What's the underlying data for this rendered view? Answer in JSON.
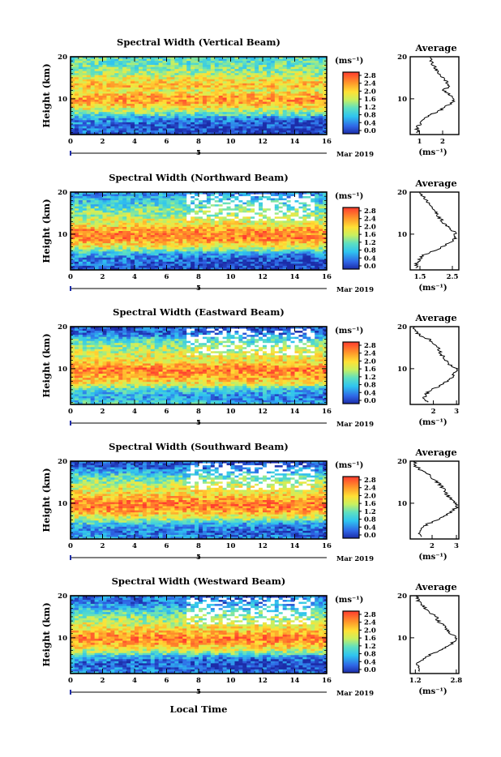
{
  "common": {
    "ylabel": "Height (km)",
    "xlabel": "Local Time",
    "colorbar_unit": "(ms⁻¹)",
    "colorbar_ticks": [
      "2.8",
      "2.4",
      "2.0",
      "1.6",
      "1.2",
      "0.8",
      "0.4",
      "0.0"
    ],
    "profile_title": "Average",
    "profile_unit": "(ms⁻¹)",
    "date_label": "Mar 2019",
    "day_marker": "5",
    "y_ticks": [
      "20",
      "10"
    ],
    "colors": {
      "high": "#ff3b2f",
      "mid": "#ffe135",
      "low": "#31c4e6",
      "min": "#1c2ca8",
      "missing": "#ffffff"
    }
  },
  "chart_data": [
    {
      "type": "heatmap",
      "title": "Spectral Width (Vertical Beam)",
      "xlabel": "Local Time",
      "ylabel": "Height (km)",
      "x_ticks": [
        "0",
        "2",
        "4",
        "6",
        "8",
        "10",
        "12",
        "14",
        "16"
      ],
      "xlim": [
        0,
        16
      ],
      "ylim": [
        1.5,
        20
      ],
      "zlim": [
        0,
        3
      ],
      "profile": {
        "title": "Average",
        "xlabel": "(ms⁻¹)",
        "x_ticks": [
          "1",
          "2"
        ],
        "xlim": [
          0.6,
          2.7
        ],
        "heights": [
          2,
          3,
          4,
          5,
          6,
          7,
          8,
          9,
          10,
          11,
          12,
          13,
          14,
          15,
          16,
          17,
          18,
          19,
          20
        ],
        "values": [
          0.9,
          0.9,
          1.0,
          1.1,
          1.4,
          1.8,
          2.1,
          2.4,
          2.5,
          2.3,
          2.0,
          2.3,
          2.2,
          2.0,
          1.8,
          1.7,
          1.6,
          1.5,
          1.5
        ]
      }
    },
    {
      "type": "heatmap",
      "title": "Spectral Width (Northward Beam)",
      "xlabel": "Local Time",
      "ylabel": "Height (km)",
      "x_ticks": [
        "0",
        "2",
        "4",
        "6",
        "8",
        "10",
        "12",
        "14",
        "16"
      ],
      "xlim": [
        0,
        16
      ],
      "ylim": [
        1.5,
        20
      ],
      "zlim": [
        0,
        3
      ],
      "profile": {
        "title": "Average",
        "xlabel": "(ms⁻¹)",
        "x_ticks": [
          "1.5",
          "2.5"
        ],
        "xlim": [
          1.2,
          2.7
        ],
        "heights": [
          2,
          3,
          4,
          5,
          6,
          7,
          8,
          9,
          10,
          11,
          12,
          13,
          14,
          15,
          16,
          17,
          18,
          19,
          20
        ],
        "values": [
          1.4,
          1.4,
          1.5,
          1.6,
          1.9,
          2.2,
          2.4,
          2.6,
          2.6,
          2.5,
          2.3,
          2.2,
          2.1,
          2.0,
          1.9,
          1.8,
          1.7,
          1.6,
          1.5
        ]
      }
    },
    {
      "type": "heatmap",
      "title": "Spectral Width (Eastward Beam)",
      "xlabel": "Local Time",
      "ylabel": "Height (km)",
      "x_ticks": [
        "0",
        "2",
        "4",
        "6",
        "8",
        "10",
        "12",
        "14",
        "16"
      ],
      "xlim": [
        0,
        16
      ],
      "ylim": [
        1.5,
        20
      ],
      "zlim": [
        0,
        3
      ],
      "profile": {
        "title": "Average",
        "xlabel": "(ms⁻¹)",
        "x_ticks": [
          "2",
          "3"
        ],
        "xlim": [
          1.0,
          3.1
        ],
        "heights": [
          2,
          3,
          4,
          5,
          6,
          7,
          8,
          9,
          10,
          11,
          12,
          13,
          14,
          15,
          16,
          17,
          18,
          19,
          20
        ],
        "values": [
          1.8,
          1.6,
          1.7,
          1.9,
          2.3,
          2.6,
          2.8,
          2.9,
          3.0,
          2.7,
          2.5,
          2.4,
          2.3,
          2.2,
          2.0,
          1.8,
          1.4,
          1.2,
          1.2
        ]
      }
    },
    {
      "type": "heatmap",
      "title": "Spectral Width (Southward Beam)",
      "xlabel": "Local Time",
      "ylabel": "Height (km)",
      "x_ticks": [
        "0",
        "2",
        "4",
        "6",
        "8",
        "10",
        "12",
        "14",
        "16"
      ],
      "xlim": [
        0,
        16
      ],
      "ylim": [
        1.5,
        20
      ],
      "zlim": [
        0,
        3
      ],
      "profile": {
        "title": "Average",
        "xlabel": "(ms⁻¹)",
        "x_ticks": [
          "2",
          "3"
        ],
        "xlim": [
          1.1,
          3.1
        ],
        "heights": [
          2,
          3,
          4,
          5,
          6,
          7,
          8,
          9,
          10,
          11,
          12,
          13,
          14,
          15,
          16,
          17,
          18,
          19,
          20
        ],
        "values": [
          1.6,
          1.5,
          1.6,
          1.8,
          2.2,
          2.5,
          2.8,
          3.0,
          3.0,
          2.8,
          2.6,
          2.5,
          2.4,
          2.2,
          2.0,
          1.8,
          1.5,
          1.3,
          1.3
        ]
      }
    },
    {
      "type": "heatmap",
      "title": "Spectral Width (Westward Beam)",
      "xlabel": "Local Time",
      "ylabel": "Height (km)",
      "x_ticks": [
        "0",
        "2",
        "4",
        "6",
        "8",
        "10",
        "12",
        "14",
        "16"
      ],
      "xlim": [
        0,
        16
      ],
      "ylim": [
        1.5,
        20
      ],
      "zlim": [
        0,
        3
      ],
      "profile": {
        "title": "Average",
        "xlabel": "(ms⁻¹)",
        "x_ticks": [
          "1.2",
          "2.8"
        ],
        "xlim": [
          1.0,
          2.9
        ],
        "heights": [
          2,
          3,
          4,
          5,
          6,
          7,
          8,
          9,
          10,
          11,
          12,
          13,
          14,
          15,
          16,
          17,
          18,
          19,
          20
        ],
        "values": [
          1.4,
          1.3,
          1.3,
          1.5,
          1.8,
          2.2,
          2.5,
          2.7,
          2.8,
          2.6,
          2.4,
          2.3,
          2.1,
          2.0,
          1.8,
          1.6,
          1.4,
          1.3,
          1.3
        ]
      }
    }
  ]
}
